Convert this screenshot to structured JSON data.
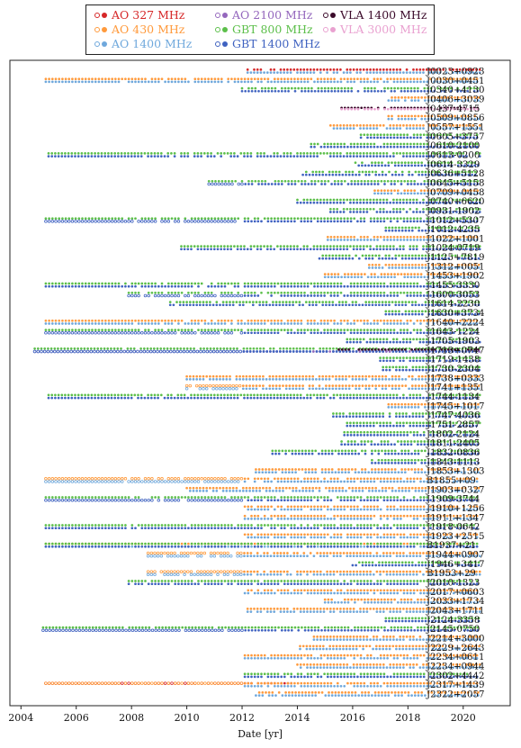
{
  "chart_data": {
    "type": "scatter",
    "xlabel": "Date [yr]",
    "ylabel": "",
    "xlim": [
      2003.6,
      2021.7
    ],
    "xticks": [
      2004,
      2006,
      2008,
      2010,
      2012,
      2014,
      2016,
      2018,
      2020
    ],
    "grid": false,
    "legend_placement": "top-center, above plot",
    "receivers": [
      {
        "name": "AO 327 MHz",
        "color": "#d62728"
      },
      {
        "name": "AO 430 MHz",
        "color": "#ff9a3c"
      },
      {
        "name": "AO 1400 MHz",
        "color": "#6fa8dc"
      },
      {
        "name": "AO 2100 MHz",
        "color": "#9467bd"
      },
      {
        "name": "GBT 800 MHz",
        "color": "#5cbf4a"
      },
      {
        "name": "GBT 1400 MHz",
        "color": "#3f62c0"
      },
      {
        "name": "VLA 1400 MHz",
        "color": "#3b0a2a"
      },
      {
        "name": "VLA 3000 MHz",
        "color": "#e9a1d0"
      }
    ],
    "pulsars": [
      {
        "name": "J0023+0923",
        "segments": [
          [
            0,
            2012.2,
            2020.6
          ],
          [
            2,
            2012.2,
            2020.6
          ]
        ]
      },
      {
        "name": "J0030+0451",
        "segments": [
          [
            1,
            2004.9,
            2020.6
          ],
          [
            2,
            2004.9,
            2020.6
          ]
        ]
      },
      {
        "name": "J0340+4130",
        "segments": [
          [
            4,
            2012.0,
            2020.6
          ],
          [
            5,
            2012.0,
            2020.6
          ]
        ]
      },
      {
        "name": "J0406+3039",
        "segments": [
          [
            1,
            2017.3,
            2020.6
          ],
          [
            2,
            2017.3,
            2020.6
          ]
        ]
      },
      {
        "name": "J0437-4715",
        "segments": [
          [
            6,
            2015.6,
            2020.6
          ],
          [
            7,
            2015.6,
            2020.6
          ]
        ]
      },
      {
        "name": "J0509+0856",
        "segments": [
          [
            1,
            2017.3,
            2020.6
          ],
          [
            2,
            2017.3,
            2020.6
          ]
        ]
      },
      {
        "name": "J0557+1551",
        "segments": [
          [
            1,
            2015.2,
            2020.6
          ],
          [
            2,
            2015.2,
            2020.6
          ]
        ]
      },
      {
        "name": "J0605+3757",
        "segments": [
          [
            4,
            2016.3,
            2020.6
          ],
          [
            5,
            2016.3,
            2020.6
          ]
        ]
      },
      {
        "name": "J0610-2100",
        "segments": [
          [
            4,
            2014.5,
            2020.6
          ],
          [
            5,
            2014.5,
            2020.6
          ]
        ]
      },
      {
        "name": "J0613-0200",
        "segments": [
          [
            4,
            2005.0,
            2020.6
          ],
          [
            5,
            2005.0,
            2020.6
          ]
        ]
      },
      {
        "name": "J0614-3329",
        "segments": [
          [
            4,
            2016.1,
            2020.6
          ],
          [
            5,
            2016.1,
            2020.6
          ]
        ]
      },
      {
        "name": "J0636+5128",
        "segments": [
          [
            4,
            2014.2,
            2020.6
          ],
          [
            5,
            2014.2,
            2020.6
          ]
        ]
      },
      {
        "name": "J0645+5158",
        "segments": [
          [
            4,
            2010.8,
            2020.6
          ],
          [
            5,
            2010.8,
            2020.6
          ]
        ]
      },
      {
        "name": "J0709+0458",
        "segments": [
          [
            1,
            2016.8,
            2020.6
          ],
          [
            2,
            2016.8,
            2020.6
          ]
        ]
      },
      {
        "name": "J0740+6620",
        "segments": [
          [
            4,
            2014.0,
            2020.6
          ],
          [
            5,
            2014.0,
            2020.6
          ]
        ]
      },
      {
        "name": "J0931-1902",
        "segments": [
          [
            4,
            2015.2,
            2020.6
          ],
          [
            5,
            2015.2,
            2020.6
          ]
        ]
      },
      {
        "name": "J1012+5307",
        "segments": [
          [
            4,
            2004.9,
            2020.6
          ],
          [
            5,
            2004.9,
            2020.6
          ]
        ]
      },
      {
        "name": "J1012-4235",
        "segments": [
          [
            4,
            2017.2,
            2020.6
          ],
          [
            5,
            2017.2,
            2020.6
          ]
        ]
      },
      {
        "name": "J1022+1001",
        "segments": [
          [
            1,
            2015.1,
            2020.6
          ],
          [
            2,
            2015.1,
            2020.6
          ]
        ]
      },
      {
        "name": "J1024-0719",
        "segments": [
          [
            4,
            2009.8,
            2020.6
          ],
          [
            5,
            2009.8,
            2020.6
          ]
        ]
      },
      {
        "name": "J1125+7819",
        "segments": [
          [
            4,
            2014.8,
            2020.6
          ],
          [
            5,
            2014.8,
            2020.6
          ]
        ]
      },
      {
        "name": "J1312+0051",
        "segments": [
          [
            1,
            2016.6,
            2020.6
          ],
          [
            2,
            2016.6,
            2020.6
          ]
        ]
      },
      {
        "name": "J1453+1902",
        "segments": [
          [
            1,
            2015.0,
            2020.6
          ],
          [
            2,
            2015.0,
            2020.6
          ]
        ]
      },
      {
        "name": "J1455-3330",
        "segments": [
          [
            4,
            2004.9,
            2020.6
          ],
          [
            5,
            2004.9,
            2020.6
          ]
        ]
      },
      {
        "name": "J1600-3053",
        "segments": [
          [
            4,
            2007.9,
            2020.6
          ],
          [
            5,
            2007.9,
            2020.6
          ]
        ]
      },
      {
        "name": "J1614-2230",
        "segments": [
          [
            4,
            2009.4,
            2020.6
          ],
          [
            5,
            2009.4,
            2020.6
          ]
        ]
      },
      {
        "name": "J1630+3734",
        "segments": [
          [
            4,
            2017.2,
            2020.6
          ],
          [
            5,
            2017.2,
            2020.6
          ]
        ]
      },
      {
        "name": "J1640+2224",
        "segments": [
          [
            1,
            2004.9,
            2020.6
          ],
          [
            2,
            2004.9,
            2020.6
          ]
        ]
      },
      {
        "name": "J1643-1224",
        "segments": [
          [
            4,
            2004.9,
            2020.6
          ],
          [
            5,
            2004.9,
            2020.6
          ]
        ]
      },
      {
        "name": "J1705-1903",
        "segments": [
          [
            4,
            2015.8,
            2020.6
          ],
          [
            5,
            2015.8,
            2020.6
          ]
        ]
      },
      {
        "name": "J1713+0747",
        "segments": [
          [
            2,
            2004.5,
            2020.6
          ],
          [
            3,
            2004.5,
            2020.6
          ],
          [
            4,
            2004.5,
            2020.6
          ],
          [
            5,
            2004.5,
            2020.6
          ],
          [
            6,
            2015.5,
            2020.6
          ]
        ]
      },
      {
        "name": "J1719-1438",
        "segments": [
          [
            4,
            2017.0,
            2020.6
          ],
          [
            5,
            2017.0,
            2020.6
          ]
        ]
      },
      {
        "name": "J1730-2304",
        "segments": [
          [
            4,
            2017.1,
            2020.6
          ],
          [
            5,
            2017.1,
            2020.6
          ]
        ]
      },
      {
        "name": "J1738+0333",
        "segments": [
          [
            1,
            2010.0,
            2020.6
          ],
          [
            2,
            2010.0,
            2020.6
          ]
        ]
      },
      {
        "name": "J1741+1351",
        "segments": [
          [
            1,
            2010.0,
            2020.6
          ],
          [
            2,
            2010.0,
            2020.6
          ]
        ]
      },
      {
        "name": "J1744-1134",
        "segments": [
          [
            4,
            2005.0,
            2020.6
          ],
          [
            5,
            2005.0,
            2020.6
          ]
        ]
      },
      {
        "name": "J1745+1017",
        "segments": [
          [
            1,
            2017.3,
            2020.6
          ],
          [
            2,
            2017.3,
            2020.6
          ]
        ]
      },
      {
        "name": "J1747-4036",
        "segments": [
          [
            4,
            2015.3,
            2020.6
          ],
          [
            5,
            2015.3,
            2020.6
          ]
        ]
      },
      {
        "name": "J1751-2857",
        "segments": [
          [
            4,
            2015.8,
            2020.6
          ],
          [
            5,
            2015.8,
            2020.6
          ]
        ]
      },
      {
        "name": "J1802-2124",
        "segments": [
          [
            4,
            2015.7,
            2020.6
          ],
          [
            5,
            2015.7,
            2020.6
          ]
        ]
      },
      {
        "name": "J1811-2405",
        "segments": [
          [
            4,
            2015.6,
            2020.6
          ],
          [
            5,
            2015.6,
            2020.6
          ]
        ]
      },
      {
        "name": "J1832-0836",
        "segments": [
          [
            4,
            2013.1,
            2020.6
          ],
          [
            5,
            2013.1,
            2020.6
          ]
        ]
      },
      {
        "name": "J1843-1113",
        "segments": [
          [
            4,
            2016.7,
            2020.6
          ],
          [
            5,
            2016.7,
            2020.6
          ]
        ]
      },
      {
        "name": "J1853+1303",
        "segments": [
          [
            1,
            2012.5,
            2020.6
          ],
          [
            2,
            2012.5,
            2020.6
          ]
        ]
      },
      {
        "name": "B1855+09",
        "segments": [
          [
            1,
            2004.9,
            2020.6
          ],
          [
            2,
            2004.9,
            2020.6
          ]
        ]
      },
      {
        "name": "J1903+0327",
        "segments": [
          [
            1,
            2010.0,
            2020.6
          ],
          [
            2,
            2010.0,
            2020.6
          ]
        ]
      },
      {
        "name": "J1909-3744",
        "segments": [
          [
            4,
            2004.9,
            2020.6
          ],
          [
            5,
            2004.9,
            2020.6
          ]
        ]
      },
      {
        "name": "J1910+1256",
        "segments": [
          [
            1,
            2012.1,
            2020.6
          ],
          [
            2,
            2012.1,
            2020.6
          ]
        ]
      },
      {
        "name": "J1911+1347",
        "segments": [
          [
            1,
            2012.1,
            2020.6
          ],
          [
            2,
            2012.1,
            2020.6
          ]
        ]
      },
      {
        "name": "J1918-0642",
        "segments": [
          [
            4,
            2004.9,
            2020.6
          ],
          [
            5,
            2004.9,
            2020.6
          ]
        ]
      },
      {
        "name": "J1923+2515",
        "segments": [
          [
            1,
            2012.1,
            2020.6
          ],
          [
            2,
            2012.1,
            2020.6
          ]
        ]
      },
      {
        "name": "B1937+21",
        "segments": [
          [
            1,
            2004.9,
            2020.6
          ],
          [
            2,
            2004.9,
            2020.6
          ],
          [
            4,
            2004.9,
            2020.6
          ],
          [
            5,
            2004.9,
            2020.6
          ]
        ]
      },
      {
        "name": "J1944+0907",
        "segments": [
          [
            1,
            2008.6,
            2020.6
          ],
          [
            2,
            2008.6,
            2020.6
          ]
        ]
      },
      {
        "name": "J1946+3417",
        "segments": [
          [
            4,
            2016.0,
            2020.6
          ],
          [
            5,
            2016.0,
            2020.6
          ]
        ]
      },
      {
        "name": "B1953+29",
        "segments": [
          [
            1,
            2008.6,
            2020.6
          ],
          [
            2,
            2008.6,
            2020.6
          ]
        ]
      },
      {
        "name": "J2010-1323",
        "segments": [
          [
            4,
            2007.9,
            2020.6
          ],
          [
            5,
            2007.9,
            2020.6
          ]
        ]
      },
      {
        "name": "J2017+0603",
        "segments": [
          [
            1,
            2012.1,
            2020.6
          ],
          [
            2,
            2012.1,
            2020.6
          ]
        ]
      },
      {
        "name": "J2033+1734",
        "segments": [
          [
            1,
            2015.0,
            2020.6
          ],
          [
            2,
            2015.0,
            2020.6
          ]
        ]
      },
      {
        "name": "J2043+1711",
        "segments": [
          [
            1,
            2012.2,
            2020.6
          ],
          [
            2,
            2012.2,
            2020.6
          ]
        ]
      },
      {
        "name": "J2124-3358",
        "segments": [
          [
            4,
            2017.2,
            2020.6
          ],
          [
            5,
            2017.2,
            2020.6
          ]
        ]
      },
      {
        "name": "J2145-0750",
        "segments": [
          [
            4,
            2004.8,
            2020.6
          ],
          [
            5,
            2004.8,
            2020.6
          ]
        ]
      },
      {
        "name": "J2214+3000",
        "segments": [
          [
            1,
            2014.6,
            2020.6
          ],
          [
            2,
            2014.6,
            2020.6
          ]
        ]
      },
      {
        "name": "J2229+2643",
        "segments": [
          [
            1,
            2014.1,
            2020.6
          ],
          [
            2,
            2014.1,
            2020.6
          ]
        ]
      },
      {
        "name": "J2234+0611",
        "segments": [
          [
            1,
            2012.1,
            2020.6
          ],
          [
            2,
            2012.1,
            2020.6
          ]
        ]
      },
      {
        "name": "J2234+0944",
        "segments": [
          [
            1,
            2014.0,
            2020.6
          ],
          [
            2,
            2014.0,
            2020.6
          ]
        ]
      },
      {
        "name": "J2302+4442",
        "segments": [
          [
            4,
            2012.1,
            2020.6
          ],
          [
            5,
            2012.1,
            2020.6
          ]
        ]
      },
      {
        "name": "J2317+1439",
        "segments": [
          [
            0,
            2004.9,
            2013.8
          ],
          [
            1,
            2004.9,
            2020.6
          ],
          [
            2,
            2012.1,
            2020.6
          ]
        ]
      },
      {
        "name": "J2322+2057",
        "segments": [
          [
            1,
            2012.5,
            2020.6
          ],
          [
            2,
            2012.5,
            2020.6
          ]
        ]
      }
    ]
  }
}
